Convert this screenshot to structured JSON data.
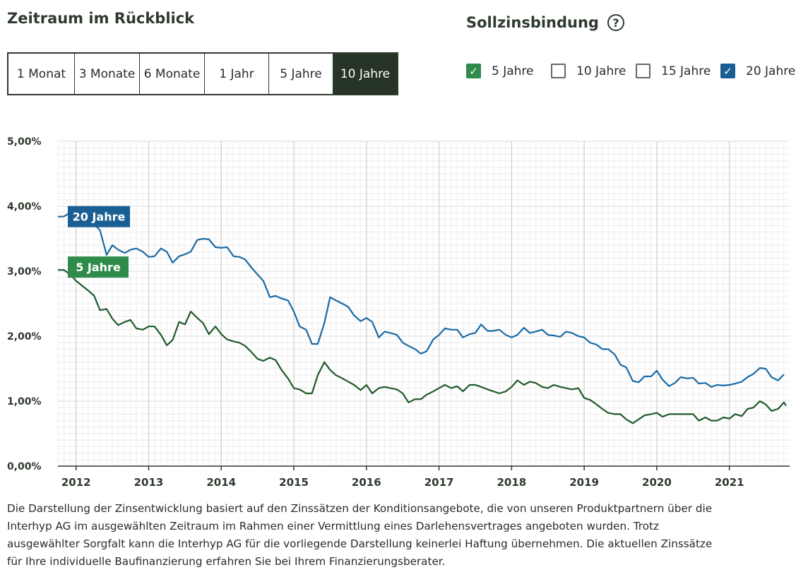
{
  "zeitraum": {
    "title": "Zeitraum im Rückblick",
    "buttons": [
      {
        "label": "1 Monat",
        "active": false
      },
      {
        "label": "3 Monate",
        "active": false
      },
      {
        "label": "6 Monate",
        "active": false
      },
      {
        "label": "1 Jahr",
        "active": false
      },
      {
        "label": "5 Jahre",
        "active": false
      },
      {
        "label": "10 Jahre",
        "active": true
      }
    ]
  },
  "sollzinsbindung": {
    "title": "Sollzinsbindung",
    "help_icon": "question-circle-icon",
    "options": [
      {
        "label": "5 Jahre",
        "checked": true,
        "color": "#2e8b4a"
      },
      {
        "label": "10 Jahre",
        "checked": false
      },
      {
        "label": "15 Jahre",
        "checked": false
      },
      {
        "label": "20 Jahre",
        "checked": true,
        "color": "#1a5f93"
      }
    ]
  },
  "chart_data": {
    "type": "line",
    "ylim": [
      0,
      5
    ],
    "y_ticks": [
      "0,00%",
      "1,00%",
      "2,00%",
      "3,00%",
      "4,00%",
      "5,00%"
    ],
    "xlim": [
      2011.75,
      2021.83
    ],
    "x_ticks": [
      "2012",
      "2013",
      "2014",
      "2015",
      "2016",
      "2017",
      "2018",
      "2019",
      "2020",
      "2021"
    ],
    "grid": true,
    "series": [
      {
        "name": "20 Jahre",
        "color": "#1a6aa5",
        "label_bg": "#1a5f93",
        "points": [
          [
            2011.75,
            3.84
          ],
          [
            2011.83,
            3.84
          ],
          [
            2011.92,
            3.9
          ],
          [
            2012.0,
            3.92
          ],
          [
            2012.08,
            3.88
          ],
          [
            2012.17,
            3.85
          ],
          [
            2012.25,
            3.72
          ],
          [
            2012.33,
            3.63
          ],
          [
            2012.42,
            3.25
          ],
          [
            2012.5,
            3.4
          ],
          [
            2012.58,
            3.33
          ],
          [
            2012.67,
            3.28
          ],
          [
            2012.75,
            3.33
          ],
          [
            2012.83,
            3.35
          ],
          [
            2012.92,
            3.3
          ],
          [
            2013.0,
            3.22
          ],
          [
            2013.08,
            3.23
          ],
          [
            2013.17,
            3.35
          ],
          [
            2013.25,
            3.3
          ],
          [
            2013.33,
            3.13
          ],
          [
            2013.42,
            3.23
          ],
          [
            2013.5,
            3.26
          ],
          [
            2013.58,
            3.3
          ],
          [
            2013.67,
            3.48
          ],
          [
            2013.75,
            3.5
          ],
          [
            2013.83,
            3.49
          ],
          [
            2013.92,
            3.37
          ],
          [
            2014.0,
            3.36
          ],
          [
            2014.08,
            3.37
          ],
          [
            2014.17,
            3.23
          ],
          [
            2014.25,
            3.22
          ],
          [
            2014.33,
            3.18
          ],
          [
            2014.42,
            3.05
          ],
          [
            2014.5,
            2.95
          ],
          [
            2014.58,
            2.85
          ],
          [
            2014.67,
            2.6
          ],
          [
            2014.75,
            2.62
          ],
          [
            2014.83,
            2.58
          ],
          [
            2014.92,
            2.55
          ],
          [
            2015.0,
            2.38
          ],
          [
            2015.08,
            2.15
          ],
          [
            2015.17,
            2.1
          ],
          [
            2015.25,
            1.88
          ],
          [
            2015.33,
            1.88
          ],
          [
            2015.42,
            2.2
          ],
          [
            2015.5,
            2.6
          ],
          [
            2015.58,
            2.55
          ],
          [
            2015.67,
            2.5
          ],
          [
            2015.75,
            2.45
          ],
          [
            2015.83,
            2.32
          ],
          [
            2015.92,
            2.23
          ],
          [
            2016.0,
            2.28
          ],
          [
            2016.08,
            2.22
          ],
          [
            2016.17,
            1.98
          ],
          [
            2016.25,
            2.07
          ],
          [
            2016.33,
            2.05
          ],
          [
            2016.42,
            2.02
          ],
          [
            2016.5,
            1.9
          ],
          [
            2016.58,
            1.85
          ],
          [
            2016.67,
            1.8
          ],
          [
            2016.75,
            1.73
          ],
          [
            2016.83,
            1.77
          ],
          [
            2016.92,
            1.95
          ],
          [
            2017.0,
            2.02
          ],
          [
            2017.08,
            2.12
          ],
          [
            2017.17,
            2.1
          ],
          [
            2017.25,
            2.1
          ],
          [
            2017.33,
            1.98
          ],
          [
            2017.42,
            2.03
          ],
          [
            2017.5,
            2.05
          ],
          [
            2017.58,
            2.18
          ],
          [
            2017.67,
            2.08
          ],
          [
            2017.75,
            2.08
          ],
          [
            2017.83,
            2.1
          ],
          [
            2017.92,
            2.02
          ],
          [
            2018.0,
            1.98
          ],
          [
            2018.08,
            2.02
          ],
          [
            2018.17,
            2.13
          ],
          [
            2018.25,
            2.05
          ],
          [
            2018.33,
            2.07
          ],
          [
            2018.42,
            2.1
          ],
          [
            2018.5,
            2.02
          ],
          [
            2018.58,
            2.01
          ],
          [
            2018.67,
            1.99
          ],
          [
            2018.75,
            2.07
          ],
          [
            2018.83,
            2.05
          ],
          [
            2018.92,
            2.0
          ],
          [
            2019.0,
            1.98
          ],
          [
            2019.08,
            1.9
          ],
          [
            2019.17,
            1.87
          ],
          [
            2019.25,
            1.8
          ],
          [
            2019.33,
            1.8
          ],
          [
            2019.42,
            1.72
          ],
          [
            2019.5,
            1.56
          ],
          [
            2019.58,
            1.52
          ],
          [
            2019.67,
            1.31
          ],
          [
            2019.75,
            1.29
          ],
          [
            2019.83,
            1.38
          ],
          [
            2019.92,
            1.38
          ],
          [
            2020.0,
            1.47
          ],
          [
            2020.08,
            1.33
          ],
          [
            2020.17,
            1.23
          ],
          [
            2020.25,
            1.28
          ],
          [
            2020.33,
            1.37
          ],
          [
            2020.42,
            1.35
          ],
          [
            2020.5,
            1.36
          ],
          [
            2020.58,
            1.27
          ],
          [
            2020.67,
            1.28
          ],
          [
            2020.75,
            1.22
          ],
          [
            2020.83,
            1.25
          ],
          [
            2020.92,
            1.24
          ],
          [
            2021.0,
            1.25
          ],
          [
            2021.08,
            1.27
          ],
          [
            2021.17,
            1.3
          ],
          [
            2021.25,
            1.37
          ],
          [
            2021.33,
            1.42
          ],
          [
            2021.42,
            1.51
          ],
          [
            2021.5,
            1.5
          ],
          [
            2021.58,
            1.37
          ],
          [
            2021.67,
            1.32
          ],
          [
            2021.75,
            1.41
          ]
        ]
      },
      {
        "name": "5 Jahre",
        "color": "#1f5a2a",
        "label_bg": "#2e8b4a",
        "points": [
          [
            2011.75,
            3.02
          ],
          [
            2011.83,
            3.02
          ],
          [
            2011.92,
            2.95
          ],
          [
            2012.0,
            2.85
          ],
          [
            2012.08,
            2.78
          ],
          [
            2012.17,
            2.7
          ],
          [
            2012.25,
            2.62
          ],
          [
            2012.33,
            2.4
          ],
          [
            2012.42,
            2.42
          ],
          [
            2012.5,
            2.27
          ],
          [
            2012.58,
            2.17
          ],
          [
            2012.67,
            2.22
          ],
          [
            2012.75,
            2.25
          ],
          [
            2012.83,
            2.12
          ],
          [
            2012.92,
            2.1
          ],
          [
            2013.0,
            2.15
          ],
          [
            2013.08,
            2.15
          ],
          [
            2013.17,
            2.02
          ],
          [
            2013.25,
            1.86
          ],
          [
            2013.33,
            1.94
          ],
          [
            2013.42,
            2.22
          ],
          [
            2013.5,
            2.18
          ],
          [
            2013.58,
            2.38
          ],
          [
            2013.67,
            2.28
          ],
          [
            2013.75,
            2.2
          ],
          [
            2013.83,
            2.03
          ],
          [
            2013.92,
            2.15
          ],
          [
            2014.0,
            2.03
          ],
          [
            2014.08,
            1.95
          ],
          [
            2014.17,
            1.92
          ],
          [
            2014.25,
            1.9
          ],
          [
            2014.33,
            1.85
          ],
          [
            2014.42,
            1.75
          ],
          [
            2014.5,
            1.65
          ],
          [
            2014.58,
            1.62
          ],
          [
            2014.67,
            1.67
          ],
          [
            2014.75,
            1.63
          ],
          [
            2014.83,
            1.48
          ],
          [
            2014.92,
            1.35
          ],
          [
            2015.0,
            1.2
          ],
          [
            2015.08,
            1.18
          ],
          [
            2015.17,
            1.12
          ],
          [
            2015.25,
            1.12
          ],
          [
            2015.33,
            1.4
          ],
          [
            2015.42,
            1.6
          ],
          [
            2015.5,
            1.48
          ],
          [
            2015.58,
            1.4
          ],
          [
            2015.67,
            1.35
          ],
          [
            2015.75,
            1.3
          ],
          [
            2015.83,
            1.25
          ],
          [
            2015.92,
            1.17
          ],
          [
            2016.0,
            1.25
          ],
          [
            2016.08,
            1.12
          ],
          [
            2016.17,
            1.2
          ],
          [
            2016.25,
            1.22
          ],
          [
            2016.33,
            1.2
          ],
          [
            2016.42,
            1.18
          ],
          [
            2016.5,
            1.12
          ],
          [
            2016.58,
            0.98
          ],
          [
            2016.67,
            1.03
          ],
          [
            2016.75,
            1.03
          ],
          [
            2016.83,
            1.1
          ],
          [
            2016.92,
            1.15
          ],
          [
            2017.0,
            1.2
          ],
          [
            2017.08,
            1.25
          ],
          [
            2017.17,
            1.2
          ],
          [
            2017.25,
            1.23
          ],
          [
            2017.33,
            1.15
          ],
          [
            2017.42,
            1.25
          ],
          [
            2017.5,
            1.25
          ],
          [
            2017.58,
            1.22
          ],
          [
            2017.67,
            1.18
          ],
          [
            2017.75,
            1.15
          ],
          [
            2017.83,
            1.12
          ],
          [
            2017.92,
            1.15
          ],
          [
            2018.0,
            1.22
          ],
          [
            2018.08,
            1.32
          ],
          [
            2018.17,
            1.25
          ],
          [
            2018.25,
            1.3
          ],
          [
            2018.33,
            1.28
          ],
          [
            2018.42,
            1.22
          ],
          [
            2018.5,
            1.2
          ],
          [
            2018.58,
            1.25
          ],
          [
            2018.67,
            1.22
          ],
          [
            2018.75,
            1.2
          ],
          [
            2018.83,
            1.18
          ],
          [
            2018.92,
            1.2
          ],
          [
            2019.0,
            1.05
          ],
          [
            2019.08,
            1.02
          ],
          [
            2019.17,
            0.95
          ],
          [
            2019.25,
            0.88
          ],
          [
            2019.33,
            0.82
          ],
          [
            2019.42,
            0.8
          ],
          [
            2019.5,
            0.8
          ],
          [
            2019.58,
            0.72
          ],
          [
            2019.67,
            0.66
          ],
          [
            2019.75,
            0.72
          ],
          [
            2019.83,
            0.78
          ],
          [
            2019.92,
            0.8
          ],
          [
            2020.0,
            0.82
          ],
          [
            2020.08,
            0.76
          ],
          [
            2020.17,
            0.8
          ],
          [
            2020.25,
            0.8
          ],
          [
            2020.33,
            0.8
          ],
          [
            2020.42,
            0.8
          ],
          [
            2020.5,
            0.8
          ],
          [
            2020.58,
            0.7
          ],
          [
            2020.67,
            0.75
          ],
          [
            2020.75,
            0.7
          ],
          [
            2020.83,
            0.7
          ],
          [
            2020.92,
            0.75
          ],
          [
            2021.0,
            0.73
          ],
          [
            2021.08,
            0.8
          ],
          [
            2021.17,
            0.77
          ],
          [
            2021.25,
            0.88
          ],
          [
            2021.33,
            0.9
          ],
          [
            2021.42,
            1.0
          ],
          [
            2021.5,
            0.95
          ],
          [
            2021.58,
            0.85
          ],
          [
            2021.67,
            0.88
          ],
          [
            2021.75,
            0.98
          ],
          [
            2021.78,
            0.93
          ]
        ]
      }
    ]
  },
  "disclaimer": {
    "lines": [
      "Die Darstellung der Zinsentwicklung basiert auf den Zinssätzen der Konditionsangebote, die von unseren Produktpartnern über die",
      "Interhyp AG im ausgewählten Zeitraum im Rahmen einer Vermittlung eines Darlehensvertrages angeboten wurden. Trotz",
      "ausgewählter Sorgfalt kann die Interhyp AG für die vorliegende Darstellung keinerlei Haftung übernehmen. Die aktuellen Zinssätze",
      "für Ihre individuelle Baufinanzierung erfahren Sie bei Ihrem Finanzierungsberater."
    ]
  }
}
